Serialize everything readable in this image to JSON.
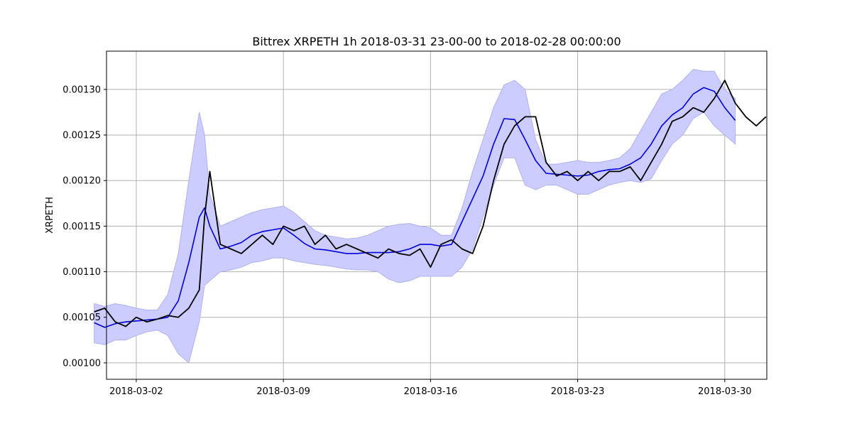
{
  "chart_data": {
    "type": "line",
    "title": "Bittrex XRPETH 1h 2018-03-31 23-00-00 to 2018-02-28 00:00:00",
    "xlabel": "",
    "ylabel": "XRPETH",
    "grid": true,
    "xlim": [
      "2018-02-28 14:00",
      "2018-04-01 00:00"
    ],
    "ylim": [
      0.000982,
      0.001342
    ],
    "x_ticks": [
      "2018-03-02",
      "2018-03-09",
      "2018-03-16",
      "2018-03-23",
      "2018-03-30"
    ],
    "y_ticks": [
      "0.00100",
      "0.00105",
      "0.00110",
      "0.00115",
      "0.00120",
      "0.00125",
      "0.00130"
    ],
    "colors": {
      "price": "#000000",
      "moving_average": "#0000dd",
      "band_fill": "#ccccff",
      "band_edge": "#b0b0f5",
      "grid": "#b0b0b0"
    },
    "series": [
      {
        "role": "price",
        "x": [
          "2018-02-28 00:00",
          "2018-02-28 12:00",
          "2018-03-01 00:00",
          "2018-03-01 12:00",
          "2018-03-02 00:00",
          "2018-03-02 12:00",
          "2018-03-03 00:00",
          "2018-03-03 12:00",
          "2018-03-04 00:00",
          "2018-03-04 12:00",
          "2018-03-05 00:00",
          "2018-03-05 06:00",
          "2018-03-05 12:00",
          "2018-03-06 00:00",
          "2018-03-06 12:00",
          "2018-03-07 00:00",
          "2018-03-07 12:00",
          "2018-03-08 00:00",
          "2018-03-08 12:00",
          "2018-03-09 00:00",
          "2018-03-09 12:00",
          "2018-03-10 00:00",
          "2018-03-10 12:00",
          "2018-03-11 00:00",
          "2018-03-11 12:00",
          "2018-03-12 00:00",
          "2018-03-12 12:00",
          "2018-03-13 00:00",
          "2018-03-13 12:00",
          "2018-03-14 00:00",
          "2018-03-14 12:00",
          "2018-03-15 00:00",
          "2018-03-15 12:00",
          "2018-03-16 00:00",
          "2018-03-16 12:00",
          "2018-03-17 00:00",
          "2018-03-17 12:00",
          "2018-03-18 00:00",
          "2018-03-18 12:00",
          "2018-03-19 00:00",
          "2018-03-19 12:00",
          "2018-03-20 00:00",
          "2018-03-20 12:00",
          "2018-03-21 00:00",
          "2018-03-21 12:00",
          "2018-03-22 00:00",
          "2018-03-22 12:00",
          "2018-03-23 00:00",
          "2018-03-23 12:00",
          "2018-03-24 00:00",
          "2018-03-24 12:00",
          "2018-03-25 00:00",
          "2018-03-25 12:00",
          "2018-03-26 00:00",
          "2018-03-26 12:00",
          "2018-03-27 00:00",
          "2018-03-27 12:00",
          "2018-03-28 00:00",
          "2018-03-28 12:00",
          "2018-03-29 00:00",
          "2018-03-29 12:00",
          "2018-03-30 00:00",
          "2018-03-30 12:00",
          "2018-03-31 00:00",
          "2018-03-31 12:00",
          "2018-03-31 23:00"
        ],
        "values": [
          0.001056,
          0.00106,
          0.001045,
          0.00104,
          0.00105,
          0.001045,
          0.001048,
          0.001052,
          0.00105,
          0.00106,
          0.00108,
          0.00116,
          0.00121,
          0.00113,
          0.001125,
          0.00112,
          0.00113,
          0.00114,
          0.00113,
          0.00115,
          0.001145,
          0.00115,
          0.00113,
          0.00114,
          0.001125,
          0.00113,
          0.001125,
          0.00112,
          0.001115,
          0.001125,
          0.00112,
          0.001118,
          0.001125,
          0.001105,
          0.00113,
          0.001135,
          0.001125,
          0.00112,
          0.00115,
          0.0012,
          0.00124,
          0.00126,
          0.00127,
          0.00127,
          0.00122,
          0.001205,
          0.00121,
          0.0012,
          0.00121,
          0.0012,
          0.00121,
          0.00121,
          0.001215,
          0.0012,
          0.00122,
          0.00124,
          0.001265,
          0.00127,
          0.00128,
          0.001275,
          0.00129,
          0.00131,
          0.001285,
          0.00127,
          0.00126,
          0.00127
        ]
      },
      {
        "role": "moving_average",
        "x": [
          "2018-02-28 00:00",
          "2018-02-28 12:00",
          "2018-03-01 00:00",
          "2018-03-01 12:00",
          "2018-03-02 00:00",
          "2018-03-02 12:00",
          "2018-03-03 00:00",
          "2018-03-03 12:00",
          "2018-03-04 00:00",
          "2018-03-04 12:00",
          "2018-03-05 00:00",
          "2018-03-05 06:00",
          "2018-03-05 12:00",
          "2018-03-06 00:00",
          "2018-03-06 12:00",
          "2018-03-07 00:00",
          "2018-03-07 12:00",
          "2018-03-08 00:00",
          "2018-03-08 12:00",
          "2018-03-09 00:00",
          "2018-03-09 12:00",
          "2018-03-10 00:00",
          "2018-03-10 12:00",
          "2018-03-11 00:00",
          "2018-03-11 12:00",
          "2018-03-12 00:00",
          "2018-03-12 12:00",
          "2018-03-13 00:00",
          "2018-03-13 12:00",
          "2018-03-14 00:00",
          "2018-03-14 12:00",
          "2018-03-15 00:00",
          "2018-03-15 12:00",
          "2018-03-16 00:00",
          "2018-03-16 12:00",
          "2018-03-17 00:00",
          "2018-03-17 12:00",
          "2018-03-18 00:00",
          "2018-03-18 12:00",
          "2018-03-19 00:00",
          "2018-03-19 12:00",
          "2018-03-20 00:00",
          "2018-03-20 12:00",
          "2018-03-21 00:00",
          "2018-03-21 12:00",
          "2018-03-22 00:00",
          "2018-03-22 12:00",
          "2018-03-23 00:00",
          "2018-03-23 12:00",
          "2018-03-24 00:00",
          "2018-03-24 12:00",
          "2018-03-25 00:00",
          "2018-03-25 12:00",
          "2018-03-26 00:00",
          "2018-03-26 12:00",
          "2018-03-27 00:00",
          "2018-03-27 12:00",
          "2018-03-28 00:00",
          "2018-03-28 12:00",
          "2018-03-29 00:00",
          "2018-03-29 12:00",
          "2018-03-30 00:00",
          "2018-03-30 12:00"
        ],
        "values": [
          0.001044,
          0.001039,
          0.001043,
          0.001045,
          0.001046,
          0.001047,
          0.001048,
          0.00105,
          0.001068,
          0.00111,
          0.00116,
          0.00117,
          0.00115,
          0.001125,
          0.001128,
          0.001132,
          0.00114,
          0.001144,
          0.001146,
          0.001148,
          0.00114,
          0.001131,
          0.001125,
          0.001124,
          0.001122,
          0.00112,
          0.00112,
          0.001121,
          0.001121,
          0.001121,
          0.001122,
          0.001125,
          0.00113,
          0.00113,
          0.001128,
          0.00113,
          0.001155,
          0.00118,
          0.001205,
          0.00124,
          0.001268,
          0.001267,
          0.001245,
          0.001222,
          0.001208,
          0.001207,
          0.001206,
          0.001205,
          0.001206,
          0.00121,
          0.001212,
          0.001213,
          0.001218,
          0.001225,
          0.00124,
          0.00126,
          0.001272,
          0.00128,
          0.001295,
          0.001302,
          0.001298,
          0.00128,
          0.001266
        ]
      }
    ],
    "band": {
      "x": [
        "2018-02-28 00:00",
        "2018-02-28 12:00",
        "2018-03-01 00:00",
        "2018-03-01 12:00",
        "2018-03-02 00:00",
        "2018-03-02 12:00",
        "2018-03-03 00:00",
        "2018-03-03 12:00",
        "2018-03-04 00:00",
        "2018-03-04 12:00",
        "2018-03-05 00:00",
        "2018-03-05 06:00",
        "2018-03-05 12:00",
        "2018-03-06 00:00",
        "2018-03-06 12:00",
        "2018-03-07 00:00",
        "2018-03-07 12:00",
        "2018-03-08 00:00",
        "2018-03-08 12:00",
        "2018-03-09 00:00",
        "2018-03-09 12:00",
        "2018-03-10 00:00",
        "2018-03-10 12:00",
        "2018-03-11 00:00",
        "2018-03-11 12:00",
        "2018-03-12 00:00",
        "2018-03-12 12:00",
        "2018-03-13 00:00",
        "2018-03-13 12:00",
        "2018-03-14 00:00",
        "2018-03-14 12:00",
        "2018-03-15 00:00",
        "2018-03-15 12:00",
        "2018-03-16 00:00",
        "2018-03-16 12:00",
        "2018-03-17 00:00",
        "2018-03-17 12:00",
        "2018-03-18 00:00",
        "2018-03-18 12:00",
        "2018-03-19 00:00",
        "2018-03-19 12:00",
        "2018-03-20 00:00",
        "2018-03-20 12:00",
        "2018-03-21 00:00",
        "2018-03-21 12:00",
        "2018-03-22 00:00",
        "2018-03-22 12:00",
        "2018-03-23 00:00",
        "2018-03-23 12:00",
        "2018-03-24 00:00",
        "2018-03-24 12:00",
        "2018-03-25 00:00",
        "2018-03-25 12:00",
        "2018-03-26 00:00",
        "2018-03-26 12:00",
        "2018-03-27 00:00",
        "2018-03-27 12:00",
        "2018-03-28 00:00",
        "2018-03-28 12:00",
        "2018-03-29 00:00",
        "2018-03-29 12:00",
        "2018-03-30 00:00",
        "2018-03-30 12:00"
      ],
      "upper": [
        0.001065,
        0.001062,
        0.001065,
        0.001063,
        0.00106,
        0.001058,
        0.001058,
        0.001075,
        0.00112,
        0.0012,
        0.001275,
        0.00125,
        0.001185,
        0.00115,
        0.001155,
        0.00116,
        0.001165,
        0.001168,
        0.00117,
        0.001172,
        0.001165,
        0.001155,
        0.001145,
        0.00114,
        0.001138,
        0.001136,
        0.001137,
        0.00114,
        0.001145,
        0.00115,
        0.001152,
        0.001153,
        0.00115,
        0.001148,
        0.00114,
        0.00114,
        0.00117,
        0.00121,
        0.001245,
        0.00128,
        0.001305,
        0.00131,
        0.0013,
        0.001245,
        0.001218,
        0.001218,
        0.00122,
        0.001222,
        0.00122,
        0.00122,
        0.001222,
        0.001225,
        0.001235,
        0.001255,
        0.001275,
        0.001295,
        0.0013,
        0.00131,
        0.001322,
        0.00132,
        0.00132,
        0.0013,
        0.00129
      ],
      "lower": [
        0.001022,
        0.00102,
        0.001025,
        0.001025,
        0.00103,
        0.001034,
        0.001036,
        0.00103,
        0.00101,
        0.001,
        0.001045,
        0.001085,
        0.00109,
        0.0011,
        0.001102,
        0.001105,
        0.00111,
        0.001112,
        0.001115,
        0.001115,
        0.001112,
        0.00111,
        0.001108,
        0.001107,
        0.001105,
        0.001103,
        0.001102,
        0.001102,
        0.0011,
        0.001092,
        0.001088,
        0.00109,
        0.001095,
        0.001095,
        0.001095,
        0.001095,
        0.001105,
        0.001125,
        0.00116,
        0.001195,
        0.001225,
        0.001225,
        0.001195,
        0.00119,
        0.001195,
        0.001195,
        0.00119,
        0.001185,
        0.001185,
        0.00119,
        0.001195,
        0.001198,
        0.0012,
        0.001198,
        0.001202,
        0.001222,
        0.00124,
        0.00125,
        0.001268,
        0.001275,
        0.00126,
        0.00125,
        0.00124
      ]
    }
  }
}
